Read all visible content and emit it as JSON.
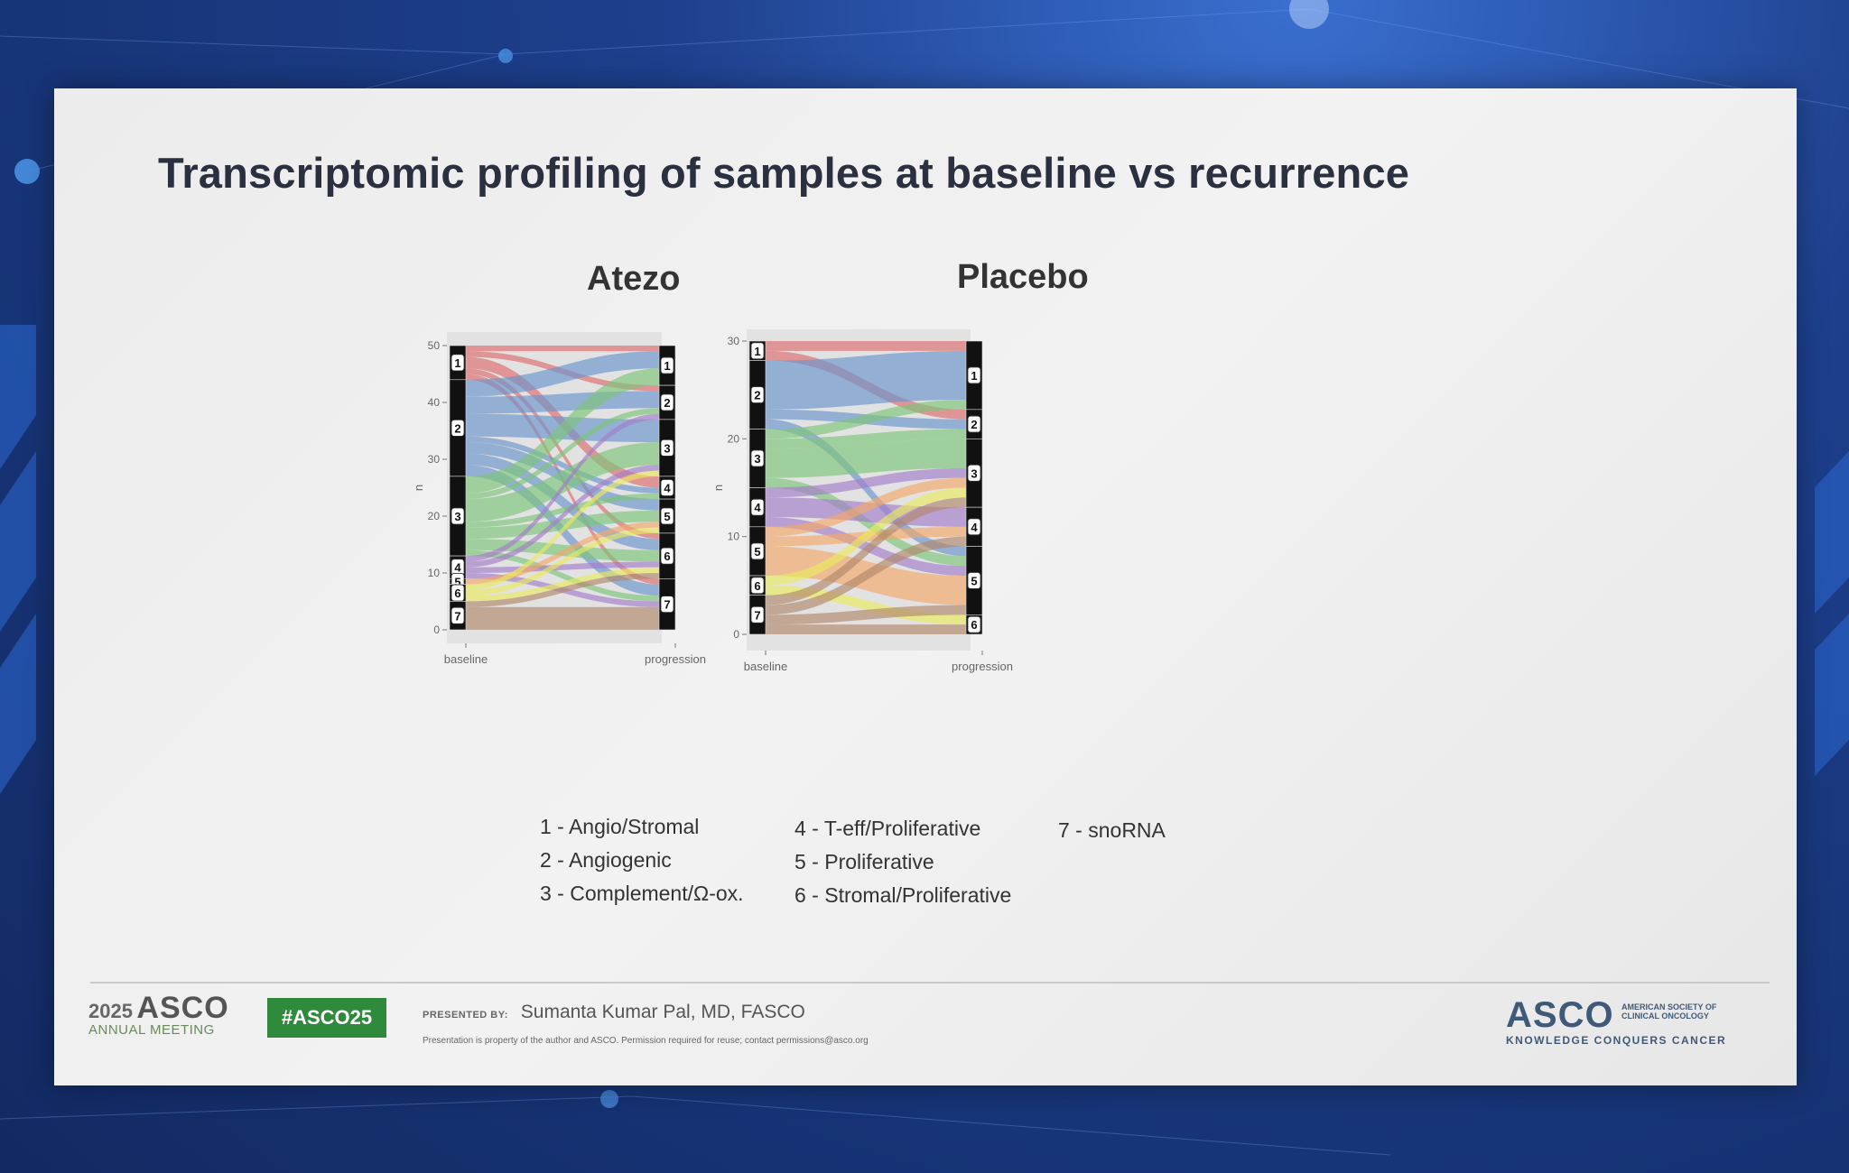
{
  "slide": {
    "title": "Transcriptomic profiling of samples at baseline vs recurrence"
  },
  "colors": {
    "1": "#dd6b6b",
    "2": "#6a93cd",
    "3": "#7cc47a",
    "4": "#a37dc9",
    "5": "#f2a868",
    "6": "#eaea5e",
    "7": "#b0876a",
    "panel_bg": "#e2e2e2",
    "stratum": "#111111"
  },
  "legend": {
    "col1": [
      "1 - Angio/Stromal",
      "2 - Angiogenic",
      "3 - Complement/Ω-ox."
    ],
    "col2": [
      "4 - T-eff/Proliferative",
      "5 - Proliferative",
      "6 - Stromal/Proliferative"
    ],
    "col3": [
      "7 - snoRNA"
    ]
  },
  "chart_data": [
    {
      "type": "alluvial",
      "title": "Atezo",
      "ylabel": "n",
      "xlabel": "",
      "x_axes": [
        "baseline",
        "progression"
      ],
      "ylim": [
        0,
        50
      ],
      "yticks": [
        0,
        10,
        20,
        30,
        40,
        50
      ],
      "strata": [
        "1",
        "2",
        "3",
        "4",
        "5",
        "6",
        "7"
      ],
      "baseline_counts": {
        "1": 6,
        "2": 17,
        "3": 14,
        "4": 4,
        "5": 1,
        "6": 3,
        "7": 5
      },
      "progression_counts": {
        "1": 7,
        "2": 6,
        "3": 10,
        "4": 4,
        "5": 6,
        "6": 8,
        "7": 9
      },
      "flows": [
        {
          "from": "1",
          "to": "1",
          "n": 1
        },
        {
          "from": "1",
          "to": "2",
          "n": 1
        },
        {
          "from": "1",
          "to": "4",
          "n": 2
        },
        {
          "from": "1",
          "to": "6",
          "n": 1
        },
        {
          "from": "1",
          "to": "7",
          "n": 1
        },
        {
          "from": "2",
          "to": "1",
          "n": 3
        },
        {
          "from": "2",
          "to": "2",
          "n": 3
        },
        {
          "from": "2",
          "to": "3",
          "n": 4
        },
        {
          "from": "2",
          "to": "4",
          "n": 1
        },
        {
          "from": "2",
          "to": "5",
          "n": 2
        },
        {
          "from": "2",
          "to": "6",
          "n": 2
        },
        {
          "from": "2",
          "to": "7",
          "n": 2
        },
        {
          "from": "3",
          "to": "1",
          "n": 3
        },
        {
          "from": "3",
          "to": "2",
          "n": 1
        },
        {
          "from": "3",
          "to": "3",
          "n": 4
        },
        {
          "from": "3",
          "to": "4",
          "n": 1
        },
        {
          "from": "3",
          "to": "5",
          "n": 2
        },
        {
          "from": "3",
          "to": "6",
          "n": 2
        },
        {
          "from": "3",
          "to": "7",
          "n": 1
        },
        {
          "from": "4",
          "to": "2",
          "n": 1
        },
        {
          "from": "4",
          "to": "3",
          "n": 1
        },
        {
          "from": "4",
          "to": "6",
          "n": 1
        },
        {
          "from": "4",
          "to": "7",
          "n": 1
        },
        {
          "from": "5",
          "to": "5",
          "n": 1
        },
        {
          "from": "6",
          "to": "3",
          "n": 1
        },
        {
          "from": "6",
          "to": "5",
          "n": 1
        },
        {
          "from": "6",
          "to": "6",
          "n": 1
        },
        {
          "from": "7",
          "to": "6",
          "n": 1
        },
        {
          "from": "7",
          "to": "7",
          "n": 4
        }
      ]
    },
    {
      "type": "alluvial",
      "title": "Placebo",
      "ylabel": "n",
      "xlabel": "",
      "x_axes": [
        "baseline",
        "progression"
      ],
      "ylim": [
        0,
        30
      ],
      "yticks": [
        0,
        10,
        20,
        30
      ],
      "strata": [
        "1",
        "2",
        "3",
        "4",
        "5",
        "6",
        "7"
      ],
      "baseline_counts": {
        "1": 2,
        "2": 7,
        "3": 6,
        "4": 4,
        "5": 5,
        "6": 2,
        "7": 4
      },
      "progression_counts": {
        "1": 7,
        "2": 3,
        "3": 7,
        "4": 4,
        "5": 7,
        "6": 2
      },
      "flows": [
        {
          "from": "1",
          "to": "1",
          "n": 1
        },
        {
          "from": "1",
          "to": "2",
          "n": 1
        },
        {
          "from": "2",
          "to": "1",
          "n": 5
        },
        {
          "from": "2",
          "to": "2",
          "n": 1
        },
        {
          "from": "2",
          "to": "5",
          "n": 1
        },
        {
          "from": "3",
          "to": "1",
          "n": 1
        },
        {
          "from": "3",
          "to": "2",
          "n": 1
        },
        {
          "from": "3",
          "to": "3",
          "n": 3
        },
        {
          "from": "3",
          "to": "5",
          "n": 1
        },
        {
          "from": "4",
          "to": "3",
          "n": 1
        },
        {
          "from": "4",
          "to": "4",
          "n": 2
        },
        {
          "from": "4",
          "to": "5",
          "n": 1
        },
        {
          "from": "5",
          "to": "3",
          "n": 1
        },
        {
          "from": "5",
          "to": "4",
          "n": 1
        },
        {
          "from": "5",
          "to": "5",
          "n": 3
        },
        {
          "from": "6",
          "to": "3",
          "n": 1
        },
        {
          "from": "6",
          "to": "6",
          "n": 1
        },
        {
          "from": "7",
          "to": "3",
          "n": 1
        },
        {
          "from": "7",
          "to": "4",
          "n": 1
        },
        {
          "from": "7",
          "to": "5",
          "n": 1
        },
        {
          "from": "7",
          "to": "6",
          "n": 1
        }
      ]
    }
  ],
  "footer": {
    "year": "2025",
    "meeting": "ASCO",
    "meeting_sub": "ANNUAL MEETING",
    "hashtag": "#ASCO25",
    "presented_by_label": "PRESENTED BY:",
    "presenter": "Sumanta Kumar Pal, MD, FASCO",
    "disclaimer": "Presentation is property of the author and ASCO. Permission required for reuse; contact permissions@asco.org",
    "logo_word": "ASCO",
    "logo_society": "AMERICAN SOCIETY OF CLINICAL ONCOLOGY",
    "logo_tagline": "KNOWLEDGE CONQUERS CANCER"
  }
}
